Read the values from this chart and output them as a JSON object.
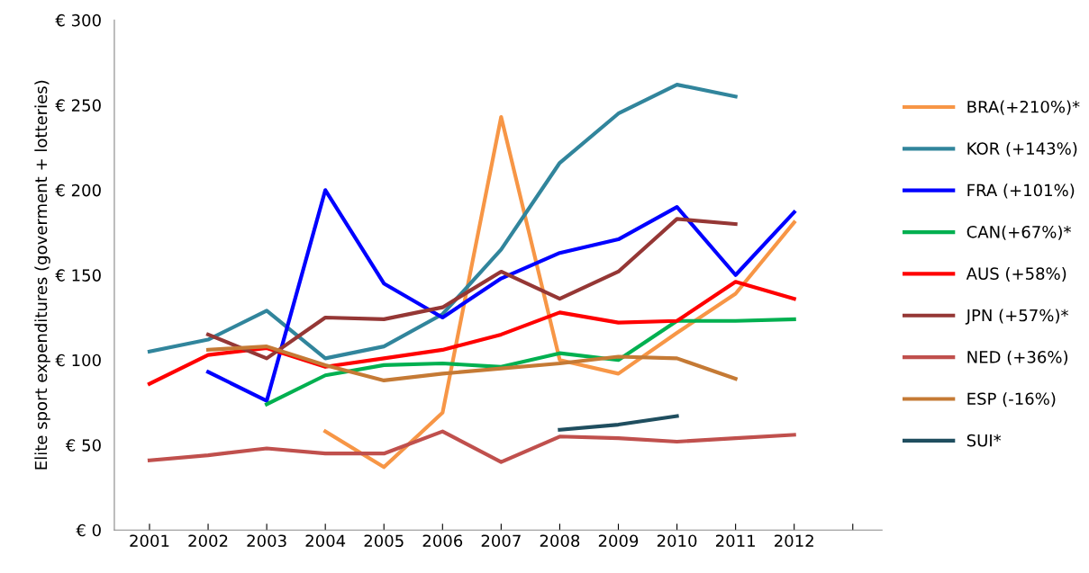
{
  "chart_data": {
    "type": "line",
    "ylabel": "Elite sport expenditures (goverment + lotteries)",
    "categories": [
      "2001",
      "2002",
      "2003",
      "2004",
      "2005",
      "2006",
      "2007",
      "2008",
      "2009",
      "2010",
      "2011",
      "2012",
      null
    ],
    "ylim": [
      0,
      300
    ],
    "yticks": [
      {
        "value": 0,
        "label": "€ 0"
      },
      {
        "value": 50,
        "label": "€ 50"
      },
      {
        "value": 100,
        "label": "€ 100"
      },
      {
        "value": 150,
        "label": "€ 150"
      },
      {
        "value": 200,
        "label": "€ 200"
      },
      {
        "value": 250,
        "label": "€ 250"
      },
      {
        "value": 300,
        "label": "€ 300"
      }
    ],
    "grid": false,
    "legend": "right",
    "marker": "none",
    "line_style": "solid",
    "series": [
      {
        "name": "BRA(+210%)*",
        "color": "#f79646",
        "values": [
          null,
          null,
          null,
          58,
          37,
          69,
          243,
          100,
          92,
          116,
          139,
          181,
          null
        ]
      },
      {
        "name": "KOR (+143%)",
        "color": "#31859c",
        "values": [
          105,
          112,
          129,
          101,
          108,
          127,
          165,
          216,
          245,
          262,
          255,
          null,
          null
        ]
      },
      {
        "name": "FRA (+101%)",
        "color": "#0000ff",
        "values": [
          null,
          93,
          76,
          200,
          145,
          125,
          148,
          163,
          171,
          190,
          150,
          187,
          null
        ]
      },
      {
        "name": "CAN(+67%)*",
        "color": "#00b050",
        "values": [
          null,
          null,
          74,
          91,
          97,
          98,
          96,
          104,
          100,
          123,
          123,
          124,
          null
        ]
      },
      {
        "name": "AUS (+58%)",
        "color": "#ff0000",
        "values": [
          86,
          103,
          107,
          96,
          101,
          106,
          115,
          128,
          122,
          123,
          146,
          136,
          null
        ]
      },
      {
        "name": "JPN (+57%)*",
        "color": "#953735",
        "values": [
          null,
          115,
          101,
          125,
          124,
          131,
          152,
          136,
          152,
          183,
          180,
          null,
          null
        ]
      },
      {
        "name": "NED (+36%)",
        "color": "#c0504d",
        "values": [
          41,
          44,
          48,
          45,
          45,
          58,
          40,
          55,
          54,
          52,
          54,
          56,
          null
        ]
      },
      {
        "name": "ESP (-16%)",
        "color": "#c57a35",
        "values": [
          null,
          106,
          108,
          97,
          88,
          92,
          95,
          98,
          102,
          101,
          89,
          null,
          null
        ]
      },
      {
        "name": "SUI*",
        "color": "#1f4e5f",
        "values": [
          null,
          null,
          null,
          null,
          null,
          null,
          null,
          59,
          62,
          67,
          null,
          null,
          null
        ]
      }
    ]
  }
}
